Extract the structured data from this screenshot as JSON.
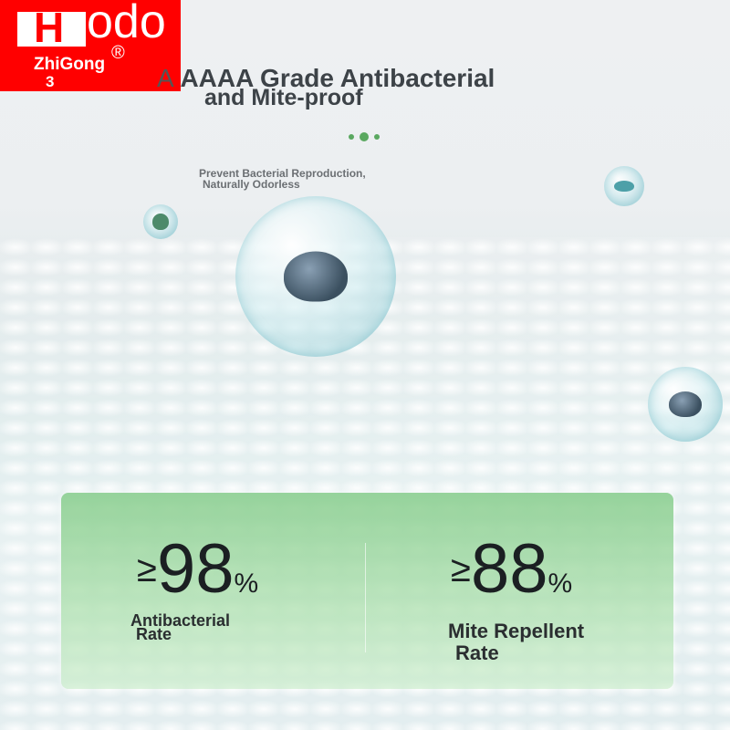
{
  "logo": {
    "brand_h": "H",
    "brand_rest": "odo",
    "sub": "ZhiGong",
    "reg": "®",
    "number": "3"
  },
  "title": {
    "prefix": "A",
    "line1": "AAAA Grade Antibacterial",
    "line2": "and Mite-proof"
  },
  "subtitle": {
    "line1": "Prevent Bacterial Reproduction,",
    "line2": "Naturally Odorless"
  },
  "accent_color": "#5aa860",
  "stats": [
    {
      "symbol": "≥",
      "value": "98",
      "unit": "%",
      "label_line1": "Antibacterial",
      "label_line2": "Rate"
    },
    {
      "symbol": "≥",
      "value": "88",
      "unit": "%",
      "label_line1": "Mite Repellent",
      "label_line2": "Rate"
    }
  ]
}
